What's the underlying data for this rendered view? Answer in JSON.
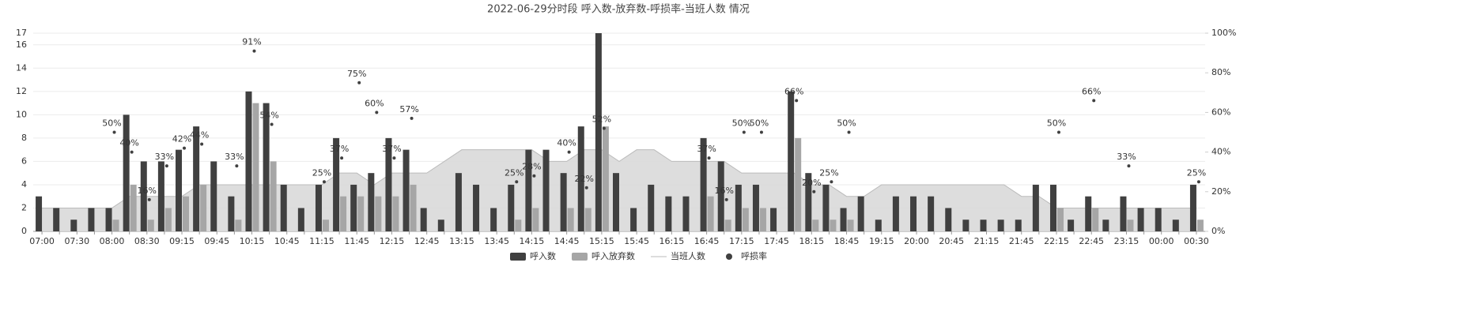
{
  "chart_data": {
    "type": "bar",
    "title": "2022-06-29分时段 呼入数-放弃数-呼损率-当班人数 情况",
    "categories": [
      "07:00",
      null,
      "07:30",
      null,
      "08:00",
      null,
      "08:30",
      null,
      "09:15",
      null,
      "09:45",
      null,
      "10:15",
      null,
      "10:45",
      null,
      "11:15",
      null,
      "11:45",
      null,
      "12:15",
      null,
      "12:45",
      null,
      "13:15",
      null,
      "13:45",
      null,
      "14:15",
      null,
      "14:45",
      null,
      "15:15",
      null,
      "15:45",
      null,
      "16:15",
      null,
      "16:45",
      null,
      "17:15",
      null,
      "17:45",
      null,
      "18:15",
      null,
      "18:45",
      null,
      "19:15",
      null,
      "20:00",
      null,
      "20:45",
      null,
      "21:15",
      null,
      "21:45",
      null,
      "22:15",
      null,
      "22:45",
      null,
      "23:15",
      null,
      "00:00",
      null,
      "00:30"
    ],
    "series": [
      {
        "name": "呼入数",
        "type": "bar",
        "color": "#404040",
        "values": [
          3,
          2,
          1,
          2,
          2,
          10,
          6,
          6,
          7,
          9,
          6,
          3,
          12,
          11,
          4,
          2,
          4,
          8,
          4,
          5,
          8,
          7,
          2,
          1,
          5,
          4,
          2,
          4,
          7,
          7,
          5,
          9,
          17,
          5,
          2,
          4,
          3,
          3,
          8,
          6,
          4,
          4,
          2,
          12,
          5,
          4,
          2,
          3,
          1,
          3,
          3,
          3,
          2,
          1,
          1,
          1,
          1,
          4,
          4,
          1,
          3,
          1,
          3,
          2,
          2,
          1,
          4
        ]
      },
      {
        "name": "呼入放弃数",
        "type": "bar",
        "color": "#a6a6a6",
        "values": [
          0,
          0,
          0,
          0,
          1,
          4,
          1,
          2,
          3,
          4,
          0,
          1,
          11,
          6,
          0,
          0,
          1,
          3,
          3,
          3,
          3,
          4,
          0,
          0,
          0,
          0,
          0,
          1,
          2,
          0,
          2,
          2,
          9,
          0,
          0,
          0,
          0,
          0,
          3,
          1,
          2,
          2,
          0,
          8,
          1,
          1,
          1,
          0,
          0,
          0,
          0,
          0,
          0,
          0,
          0,
          0,
          0,
          0,
          2,
          0,
          2,
          0,
          1,
          0,
          0,
          0,
          1
        ]
      },
      {
        "name": "当班人数",
        "type": "area",
        "color": "#d9d9d9",
        "values": [
          2,
          2,
          2,
          2,
          2,
          3,
          3,
          3,
          3,
          4,
          4,
          4,
          4,
          4,
          4,
          4,
          4,
          5,
          5,
          4,
          5,
          5,
          5,
          6,
          7,
          7,
          7,
          7,
          7,
          6,
          6,
          7,
          7,
          6,
          7,
          7,
          6,
          6,
          6,
          6,
          5,
          5,
          5,
          5,
          4,
          4,
          3,
          3,
          4,
          4,
          4,
          4,
          4,
          4,
          4,
          4,
          3,
          3,
          2,
          2,
          2,
          2,
          2,
          2,
          2,
          2,
          2
        ]
      },
      {
        "name": "呼损率",
        "type": "scatter",
        "color": "#404040",
        "axis": "y2",
        "values": [
          null,
          null,
          null,
          null,
          50,
          40,
          16,
          33,
          42,
          44,
          null,
          33,
          91,
          54,
          null,
          null,
          25,
          37,
          75,
          60,
          37,
          57,
          null,
          null,
          null,
          null,
          null,
          25,
          28,
          null,
          40,
          22,
          52,
          null,
          null,
          null,
          null,
          null,
          37,
          16,
          50,
          50,
          null,
          66,
          20,
          25,
          50,
          null,
          null,
          null,
          null,
          null,
          null,
          null,
          null,
          null,
          null,
          null,
          50,
          null,
          66,
          null,
          33,
          null,
          null,
          null,
          25
        ],
        "value_labels": [
          null,
          null,
          null,
          null,
          "50%",
          "40%",
          "16%",
          "33%",
          "42%",
          "44%",
          null,
          "33%",
          "91%",
          "54%",
          null,
          null,
          "25%",
          "37%",
          "75%",
          "60%",
          "37%",
          "57%",
          null,
          null,
          null,
          null,
          null,
          "25%",
          "28%",
          null,
          "40%",
          "22%",
          "52%",
          null,
          null,
          null,
          null,
          null,
          "37%",
          "16%",
          "50%",
          "50%",
          null,
          "66%",
          "20%",
          "25%",
          "50%",
          null,
          null,
          null,
          null,
          null,
          null,
          null,
          null,
          null,
          null,
          null,
          "50%",
          null,
          "66%",
          null,
          "33%",
          null,
          null,
          null,
          "25%"
        ]
      }
    ],
    "ylim": [
      0,
      17
    ],
    "yticks": [
      0,
      2,
      4,
      6,
      8,
      10,
      12,
      14,
      16,
      17
    ],
    "y2lim": [
      0,
      100
    ],
    "y2ticks": [
      {
        "value": 0,
        "label": "0%"
      },
      {
        "value": 20,
        "label": "20%"
      },
      {
        "value": 40,
        "label": "40%"
      },
      {
        "value": 60,
        "label": "60%"
      },
      {
        "value": 80,
        "label": "80%"
      },
      {
        "value": 100,
        "label": "100%"
      }
    ],
    "grid": true,
    "legend": "bottom"
  }
}
